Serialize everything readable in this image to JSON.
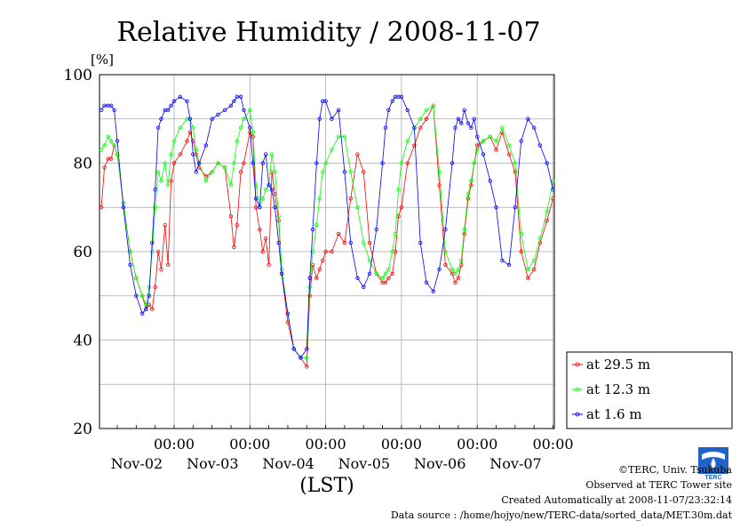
{
  "chart_data": {
    "type": "line",
    "title": "Relative Humidity / 2008-11-07",
    "ylabel": "[%]",
    "xlabel": "(LST)",
    "ylim": [
      20,
      100
    ],
    "yticks": [
      20,
      40,
      60,
      80,
      100
    ],
    "xlim_days": [
      0,
      6
    ],
    "xticks": [
      {
        "time": "00:00",
        "date": "Nov-02"
      },
      {
        "time": "00:00",
        "date": "Nov-03"
      },
      {
        "time": "00:00",
        "date": "Nov-04"
      },
      {
        "time": "00:00",
        "date": "Nov-05"
      },
      {
        "time": "00:00",
        "date": "Nov-06"
      },
      {
        "time": "00:00",
        "date": "Nov-07"
      }
    ],
    "grid": true,
    "legend_position": "bottom-right outside",
    "series": [
      {
        "name": "at 29.5 m",
        "color": "#ff0000",
        "x": [
          0,
          0.04,
          0.08,
          0.13,
          0.17,
          0.21,
          0.25,
          0.33,
          0.42,
          0.5,
          0.58,
          0.63,
          0.67,
          0.71,
          0.75,
          0.79,
          0.83,
          0.88,
          0.92,
          0.96,
          1.0,
          1.08,
          1.17,
          1.21,
          1.25,
          1.29,
          1.33,
          1.42,
          1.5,
          1.58,
          1.67,
          1.75,
          1.79,
          1.83,
          1.88,
          1.92,
          2.0,
          2.04,
          2.08,
          2.13,
          2.17,
          2.21,
          2.25,
          2.29,
          2.33,
          2.38,
          2.42,
          2.5,
          2.58,
          2.67,
          2.75,
          2.79,
          2.83,
          2.88,
          2.92,
          2.96,
          3.0,
          3.08,
          3.17,
          3.25,
          3.33,
          3.42,
          3.5,
          3.58,
          3.67,
          3.75,
          3.79,
          3.83,
          3.88,
          3.92,
          3.96,
          4.0,
          4.08,
          4.17,
          4.25,
          4.33,
          4.42,
          4.5,
          4.58,
          4.67,
          4.71,
          4.75,
          4.79,
          4.83,
          4.88,
          4.92,
          4.96,
          5.0,
          5.08,
          5.17,
          5.25,
          5.33,
          5.42,
          5.5,
          5.58,
          5.67,
          5.75,
          5.83,
          5.92,
          6.0
        ],
        "values": [
          67,
          70,
          79,
          81,
          81,
          84,
          82,
          71,
          60,
          54,
          50,
          47,
          48,
          47,
          52,
          60,
          56,
          66,
          57,
          76,
          80,
          82,
          85,
          87,
          85,
          82,
          79,
          77,
          78,
          80,
          79,
          68,
          61,
          66,
          78,
          80,
          87,
          86,
          70,
          65,
          60,
          63,
          57,
          78,
          73,
          67,
          55,
          44,
          38,
          36,
          34,
          50,
          57,
          54,
          56,
          58,
          60,
          60,
          64,
          62,
          72,
          82,
          78,
          62,
          55,
          53,
          53,
          54,
          55,
          60,
          68,
          70,
          80,
          84,
          88,
          90,
          93,
          75,
          57,
          55,
          53,
          54,
          57,
          64,
          72,
          75,
          80,
          84,
          85,
          86,
          83,
          87,
          82,
          78,
          60,
          54,
          56,
          62,
          67,
          72
        ]
      },
      {
        "name": "at 12.3 m",
        "color": "#00ff00",
        "x": [
          0,
          0.04,
          0.08,
          0.13,
          0.17,
          0.21,
          0.25,
          0.33,
          0.42,
          0.5,
          0.58,
          0.63,
          0.67,
          0.71,
          0.75,
          0.79,
          0.83,
          0.88,
          0.92,
          0.96,
          1.0,
          1.08,
          1.17,
          1.21,
          1.25,
          1.29,
          1.33,
          1.42,
          1.5,
          1.58,
          1.67,
          1.75,
          1.79,
          1.83,
          1.88,
          1.92,
          2.0,
          2.04,
          2.08,
          2.13,
          2.17,
          2.21,
          2.25,
          2.29,
          2.33,
          2.38,
          2.42,
          2.5,
          2.58,
          2.67,
          2.75,
          2.79,
          2.83,
          2.88,
          2.92,
          2.96,
          3.0,
          3.08,
          3.17,
          3.25,
          3.33,
          3.42,
          3.5,
          3.58,
          3.67,
          3.75,
          3.79,
          3.83,
          3.88,
          3.92,
          3.96,
          4.0,
          4.08,
          4.17,
          4.25,
          4.33,
          4.42,
          4.5,
          4.58,
          4.67,
          4.71,
          4.75,
          4.79,
          4.83,
          4.88,
          4.92,
          4.96,
          5.0,
          5.08,
          5.17,
          5.25,
          5.33,
          5.42,
          5.5,
          5.58,
          5.67,
          5.75,
          5.83,
          5.92,
          6.0
        ],
        "values": [
          78,
          83,
          84,
          86,
          85,
          84,
          82,
          71,
          60,
          54,
          50,
          48,
          52,
          60,
          70,
          78,
          76,
          80,
          75,
          82,
          85,
          88,
          90,
          90,
          88,
          83,
          80,
          76,
          78,
          80,
          79,
          75,
          80,
          85,
          88,
          90,
          92,
          87,
          75,
          70,
          72,
          74,
          75,
          82,
          78,
          68,
          56,
          46,
          38,
          36,
          36,
          52,
          60,
          66,
          72,
          78,
          80,
          83,
          86,
          86,
          78,
          70,
          62,
          58,
          55,
          54,
          55,
          56,
          60,
          64,
          74,
          80,
          85,
          88,
          90,
          92,
          93,
          78,
          60,
          56,
          55,
          56,
          58,
          65,
          73,
          76,
          80,
          83,
          85,
          86,
          85,
          88,
          84,
          80,
          64,
          56,
          58,
          63,
          69,
          76
        ]
      },
      {
        "name": "at 1.6 m",
        "color": "#0000ff",
        "x": [
          0,
          0.04,
          0.08,
          0.13,
          0.17,
          0.21,
          0.25,
          0.33,
          0.42,
          0.5,
          0.58,
          0.63,
          0.67,
          0.71,
          0.75,
          0.79,
          0.83,
          0.88,
          0.92,
          0.96,
          1.0,
          1.08,
          1.17,
          1.21,
          1.25,
          1.29,
          1.33,
          1.42,
          1.5,
          1.58,
          1.67,
          1.75,
          1.79,
          1.83,
          1.88,
          1.92,
          2.0,
          2.04,
          2.08,
          2.13,
          2.17,
          2.21,
          2.25,
          2.29,
          2.33,
          2.38,
          2.42,
          2.5,
          2.58,
          2.67,
          2.75,
          2.79,
          2.83,
          2.88,
          2.92,
          2.96,
          3.0,
          3.08,
          3.17,
          3.25,
          3.33,
          3.42,
          3.5,
          3.58,
          3.67,
          3.75,
          3.79,
          3.83,
          3.88,
          3.92,
          3.96,
          4.0,
          4.08,
          4.17,
          4.25,
          4.33,
          4.42,
          4.5,
          4.58,
          4.67,
          4.71,
          4.75,
          4.79,
          4.83,
          4.88,
          4.92,
          4.96,
          5.0,
          5.08,
          5.17,
          5.25,
          5.33,
          5.42,
          5.5,
          5.58,
          5.67,
          5.75,
          5.83,
          5.92,
          6.0
        ],
        "values": [
          89,
          92,
          93,
          93,
          93,
          92,
          85,
          70,
          57,
          50,
          46,
          47,
          50,
          62,
          74,
          88,
          90,
          92,
          92,
          93,
          94,
          95,
          94,
          90,
          82,
          78,
          80,
          84,
          90,
          91,
          92,
          93,
          94,
          95,
          95,
          92,
          88,
          80,
          72,
          70,
          80,
          82,
          75,
          74,
          70,
          62,
          55,
          46,
          38,
          36,
          38,
          54,
          65,
          80,
          90,
          94,
          94,
          90,
          92,
          78,
          62,
          54,
          52,
          55,
          65,
          80,
          88,
          92,
          94,
          95,
          95,
          95,
          92,
          88,
          62,
          53,
          51,
          56,
          65,
          80,
          88,
          90,
          89,
          92,
          89,
          88,
          90,
          86,
          82,
          76,
          70,
          58,
          57,
          70,
          85,
          90,
          88,
          84,
          80,
          74
        ]
      }
    ]
  },
  "footer": {
    "copyright": "©TERC, Univ. Tsukuba",
    "site": "Observed at TERC Tower site",
    "created": "Created Automatically at 2008-11-07/23:32:14",
    "source": "Data source : /home/hojyo/new/TERC-data/sorted_data/MET.30m.dat"
  },
  "logo": {
    "text": "TERC",
    "color": "#1e64c8"
  }
}
